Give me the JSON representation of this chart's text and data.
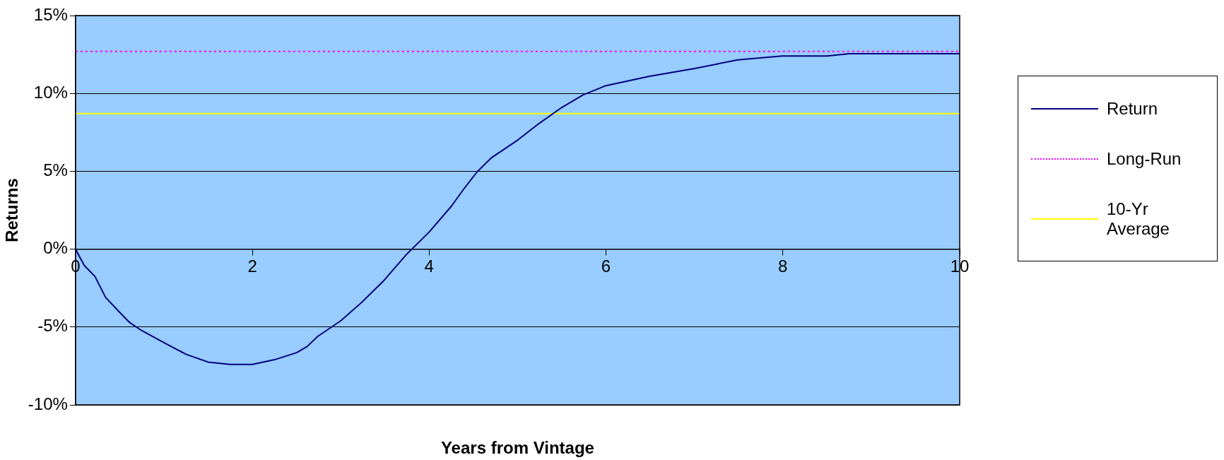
{
  "chart_data": {
    "type": "line",
    "xlabel": "Years from Vintage",
    "ylabel": "Returns",
    "x": [
      0,
      0.1,
      0.22,
      0.34,
      0.49,
      0.61,
      0.74,
      1.0,
      1.25,
      1.5,
      1.75,
      2.0,
      2.25,
      2.5,
      2.62,
      2.74,
      3.0,
      3.24,
      3.49,
      3.75,
      4.0,
      4.25,
      4.39,
      4.54,
      4.7,
      5.0,
      5.25,
      5.5,
      5.74,
      6.0,
      6.49,
      7.0,
      7.49,
      7.99,
      8.5,
      8.75,
      10
    ],
    "series": [
      {
        "name": "Return",
        "color": "#000080",
        "values": [
          0,
          -1.05,
          -1.75,
          -3.1,
          -4.0,
          -4.7,
          -5.2,
          -6.0,
          -6.75,
          -7.25,
          -7.4,
          -7.4,
          -7.1,
          -6.65,
          -6.25,
          -5.6,
          -4.6,
          -3.4,
          -2.0,
          -0.3,
          1.1,
          2.75,
          3.85,
          4.95,
          5.85,
          7.0,
          8.1,
          9.1,
          9.9,
          10.5,
          11.1,
          11.6,
          12.15,
          12.4,
          12.4,
          12.55,
          12.55
        ]
      }
    ],
    "ref_lines": [
      {
        "axis": "y",
        "value": 12.7,
        "label": "Long-Run",
        "color": "#ff00ff",
        "line_style": "dotted"
      },
      {
        "axis": "y",
        "value": 8.7,
        "label": "10-Yr Average",
        "color": "#ffff00",
        "line_style": "solid"
      }
    ],
    "xlim": [
      0,
      10
    ],
    "xticks": [
      0,
      2,
      4,
      6,
      8,
      10
    ],
    "ylim": [
      -10,
      15
    ],
    "yticks": [
      {
        "value": -10,
        "label": "-10%"
      },
      {
        "value": -5,
        "label": "-5%"
      },
      {
        "value": 0,
        "label": "0%"
      },
      {
        "value": 5,
        "label": "5%"
      },
      {
        "value": 10,
        "label": "10%"
      },
      {
        "value": 15,
        "label": "15%"
      }
    ],
    "grid": "y",
    "legend": "right",
    "marker": "none",
    "line_style": "solid"
  }
}
